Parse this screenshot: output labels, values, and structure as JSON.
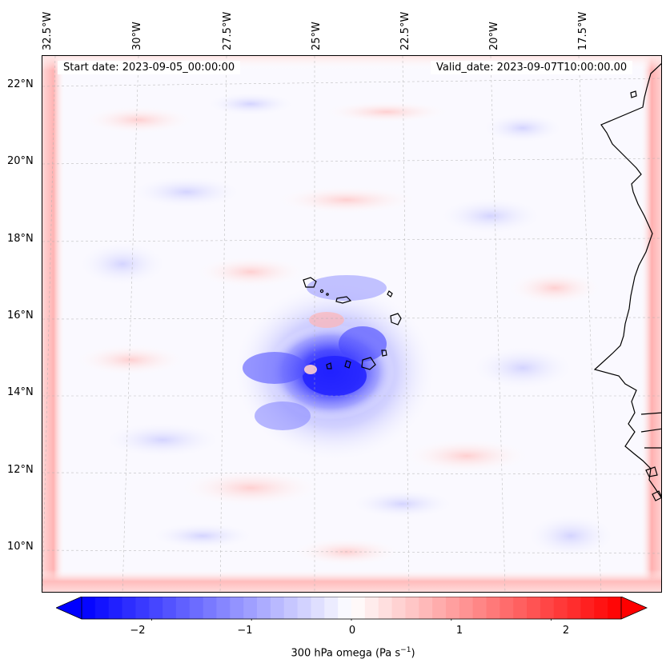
{
  "map": {
    "start_date_text": "Start date: 2023-09-05_00:00:00",
    "valid_date_text": "Valid_date: 2023-09-07T10:00:00.00",
    "lon_labels": [
      "32.5°W",
      "30°W",
      "27.5°W",
      "25°W",
      "22.5°W",
      "20°W",
      "17.5°W"
    ],
    "lat_labels": [
      "22°N",
      "20°N",
      "18°N",
      "16°N",
      "14°N",
      "12°N",
      "10°N"
    ],
    "variable": "300 hPa omega",
    "features": [
      "cabo-verde-islands",
      "west-africa-coastline"
    ]
  },
  "colorbar": {
    "label_main": "300 hPa omega (Pa s",
    "label_exp": "−1",
    "label_end": ")",
    "min": -2.7,
    "max": 2.7,
    "ticks": [
      "−2",
      "−1",
      "0",
      "1",
      "2"
    ],
    "tick_values": [
      -2,
      -1,
      0,
      1,
      2
    ],
    "low_color": "#0000ff",
    "mid_color": "#ffffff",
    "high_color": "#ff0000"
  },
  "colors": {
    "grid": "#b0b0b0",
    "coast": "#000000"
  }
}
